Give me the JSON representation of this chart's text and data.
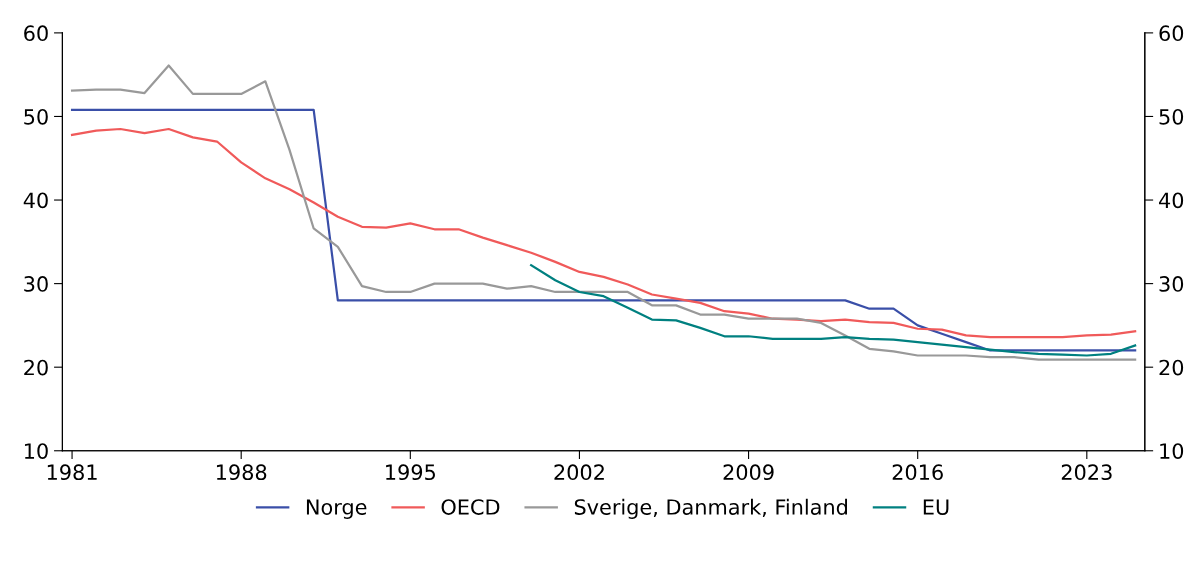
{
  "chart_data": {
    "type": "line",
    "xlim": [
      1980.6,
      2025.4
    ],
    "xticks": [
      1981,
      1988,
      1995,
      2002,
      2009,
      2016,
      2023
    ],
    "ylim": [
      10,
      60
    ],
    "yticks": [
      10,
      20,
      30,
      40,
      50,
      60
    ],
    "y2lim": [
      10,
      60
    ],
    "y2ticks": [
      10,
      20,
      30,
      40,
      50,
      60
    ],
    "grid": false,
    "legend": "bottom",
    "marker": "none",
    "line_style": "solid",
    "series": [
      {
        "name": "Norge",
        "color": "#3a4fa8",
        "x": [
          1981,
          1982,
          1983,
          1984,
          1985,
          1986,
          1987,
          1988,
          1989,
          1990,
          1991,
          1992,
          1993,
          1994,
          1995,
          1996,
          1997,
          1998,
          1999,
          2000,
          2001,
          2002,
          2003,
          2004,
          2005,
          2006,
          2007,
          2008,
          2009,
          2010,
          2011,
          2012,
          2013,
          2014,
          2015,
          2016,
          2017,
          2018,
          2019,
          2020,
          2021,
          2022,
          2023,
          2024,
          2025
        ],
        "values": [
          50.8,
          50.8,
          50.8,
          50.8,
          50.8,
          50.8,
          50.8,
          50.8,
          50.8,
          50.8,
          50.8,
          28,
          28,
          28,
          28,
          28,
          28,
          28,
          28,
          28,
          28,
          28,
          28,
          28,
          28,
          28,
          28,
          28,
          28,
          28,
          28,
          28,
          28,
          27,
          27,
          25,
          24,
          23,
          22,
          22,
          22,
          22,
          22,
          22,
          22
        ]
      },
      {
        "name": "OECD",
        "color": "#f05a5a",
        "x": [
          1981,
          1982,
          1983,
          1984,
          1985,
          1986,
          1987,
          1988,
          1989,
          1990,
          1991,
          1992,
          1993,
          1994,
          1995,
          1996,
          1997,
          1998,
          1999,
          2000,
          2001,
          2002,
          2003,
          2004,
          2005,
          2006,
          2007,
          2008,
          2009,
          2010,
          2011,
          2012,
          2013,
          2014,
          2015,
          2016,
          2017,
          2018,
          2019,
          2020,
          2021,
          2022,
          2023,
          2024,
          2025
        ],
        "values": [
          47.8,
          48.3,
          48.5,
          48.0,
          48.5,
          47.5,
          47.0,
          44.5,
          42.6,
          41.3,
          39.7,
          38.0,
          36.8,
          36.7,
          37.2,
          36.5,
          36.5,
          35.5,
          34.6,
          33.7,
          32.6,
          31.4,
          30.8,
          29.9,
          28.7,
          28.2,
          27.7,
          26.7,
          26.4,
          25.8,
          25.7,
          25.5,
          25.7,
          25.4,
          25.3,
          24.6,
          24.5,
          23.8,
          23.6,
          23.6,
          23.6,
          23.6,
          23.8,
          23.9,
          24.3
        ]
      },
      {
        "name": "Sverige, Danmark, Finland",
        "color": "#999999",
        "x": [
          1981,
          1982,
          1983,
          1984,
          1985,
          1986,
          1987,
          1988,
          1989,
          1990,
          1991,
          1992,
          1993,
          1994,
          1995,
          1996,
          1997,
          1998,
          1999,
          2000,
          2001,
          2002,
          2003,
          2004,
          2005,
          2006,
          2007,
          2008,
          2009,
          2010,
          2011,
          2012,
          2013,
          2014,
          2015,
          2016,
          2017,
          2018,
          2019,
          2020,
          2021,
          2022,
          2023,
          2024,
          2025
        ],
        "values": [
          53.1,
          53.2,
          53.2,
          52.8,
          56.1,
          52.7,
          52.7,
          52.7,
          54.2,
          46.0,
          36.6,
          34.4,
          29.7,
          29.0,
          29.0,
          30.0,
          30.0,
          30.0,
          29.4,
          29.7,
          29.0,
          29.0,
          29.0,
          29.0,
          27.4,
          27.4,
          26.3,
          26.3,
          25.8,
          25.8,
          25.8,
          25.3,
          23.8,
          22.2,
          21.9,
          21.4,
          21.4,
          21.4,
          21.2,
          21.2,
          20.9,
          20.9,
          20.9,
          20.9,
          20.9
        ]
      },
      {
        "name": "EU",
        "color": "#008080",
        "x": [
          2000,
          2001,
          2002,
          2003,
          2004,
          2005,
          2006,
          2007,
          2008,
          2009,
          2010,
          2011,
          2012,
          2013,
          2014,
          2015,
          2016,
          2017,
          2018,
          2019,
          2020,
          2021,
          2022,
          2023,
          2024,
          2025
        ],
        "values": [
          32.2,
          30.4,
          29.0,
          28.5,
          27.1,
          25.7,
          25.6,
          24.7,
          23.7,
          23.7,
          23.4,
          23.4,
          23.4,
          23.6,
          23.4,
          23.3,
          23.0,
          22.7,
          22.4,
          22.1,
          21.8,
          21.6,
          21.5,
          21.4,
          21.6,
          22.6
        ]
      }
    ]
  }
}
